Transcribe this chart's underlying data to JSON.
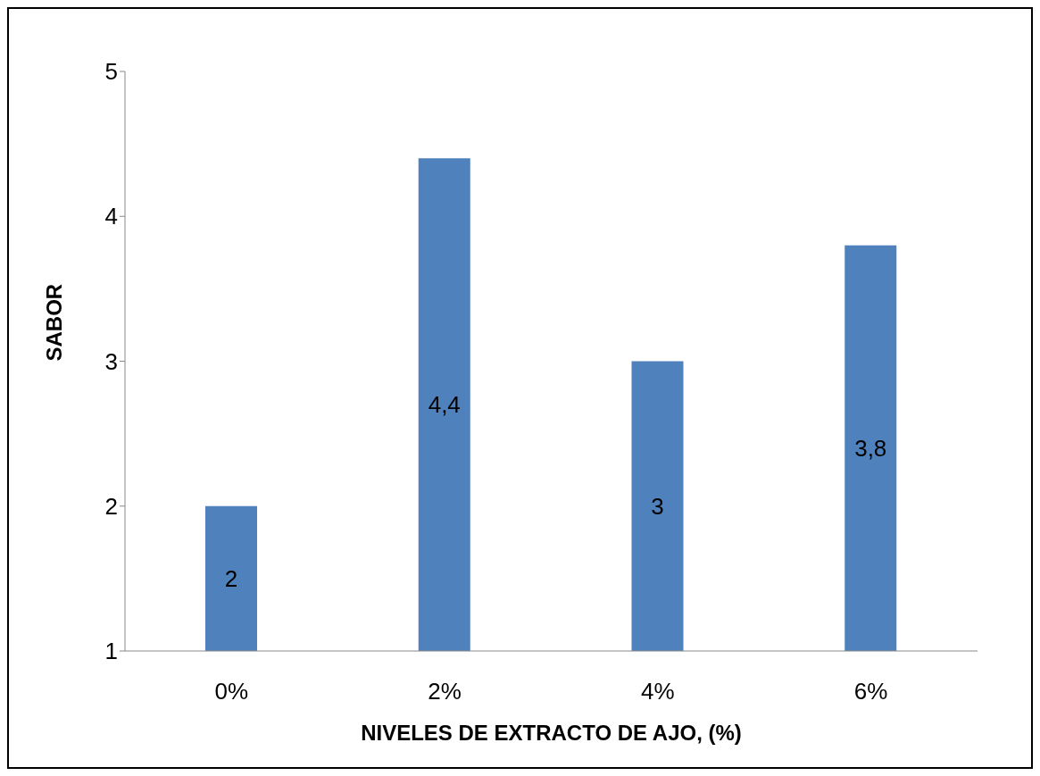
{
  "chart_data": {
    "type": "bar",
    "xlabel": "NIVELES DE EXTRACTO DE AJO, (%)",
    "ylabel": "SABOR",
    "categories": [
      "0%",
      "2%",
      "4%",
      "6%"
    ],
    "values": [
      2,
      4.4,
      3,
      3.8
    ],
    "value_labels": [
      "2",
      "4,4",
      "3",
      "3,8"
    ],
    "color": "#4f81bd",
    "ylim": [
      1,
      5
    ],
    "yticks": [
      1,
      2,
      3,
      4,
      5
    ],
    "grid": false
  }
}
